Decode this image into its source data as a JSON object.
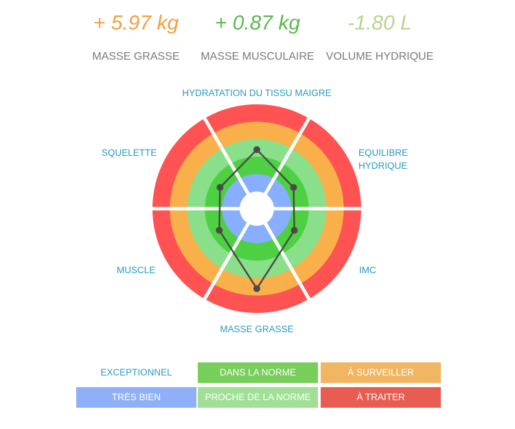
{
  "stats": [
    {
      "value": "+ 5.97 kg",
      "label": "MASSE GRASSE",
      "color": "#f5a041"
    },
    {
      "value": "+ 0.87 kg",
      "label": "MASSE MUSCULAIRE",
      "color": "#5cb850"
    },
    {
      "value": "-1.80 L",
      "label": "VOLUME HYDRIQUE",
      "color": "#b8d48e"
    }
  ],
  "chart_data": {
    "type": "radar",
    "axes": [
      "HYDRATATION DU TISSU MAIGRE",
      "EQUILIBRE HYDRIQUE",
      "IMC",
      "MASSE GRASSE",
      "MUSCLE",
      "SQUELETTE"
    ],
    "axis_label_lines": {
      "EQUILIBRE HYDRIQUE": [
        "EQUILIBRE",
        "HYDRIQUE"
      ]
    },
    "values": [
      2.4,
      1.45,
      1.5,
      3.6,
      1.5,
      1.45
    ],
    "scale": "rings from center: 0-1 très bien, 1-2 dans la norme, 2-3 proche de la norme, 3-4 à surveiller, 4-5 à traiter",
    "rings": [
      {
        "name": "TRÈS BIEN",
        "color": "#88aeff"
      },
      {
        "name": "DANS LA NORME",
        "color": "#4dd142"
      },
      {
        "name": "PROCHE DE LA NORME",
        "color": "#8ae08a"
      },
      {
        "name": "À SURVEILLER",
        "color": "#f9b04a"
      },
      {
        "name": "À TRAITER",
        "color": "#ff5252"
      }
    ],
    "line_color": "#4a4a4a"
  },
  "legend": [
    {
      "label": "EXCEPTIONNEL",
      "color": "transparent",
      "text": "#2a9bc0"
    },
    {
      "label": "DANS LA NORME",
      "color": "#77ce5a",
      "text": "#fff"
    },
    {
      "label": "À SURVEILLER",
      "color": "#f0b662",
      "text": "#fff"
    },
    {
      "label": "TRÈS BIEN",
      "color": "#8fb0f8",
      "text": "#fff"
    },
    {
      "label": "PROCHE DE LA NORME",
      "color": "#a0e095",
      "text": "#fff"
    },
    {
      "label": "À TRAITER",
      "color": "#e85c52",
      "text": "#fff"
    }
  ]
}
